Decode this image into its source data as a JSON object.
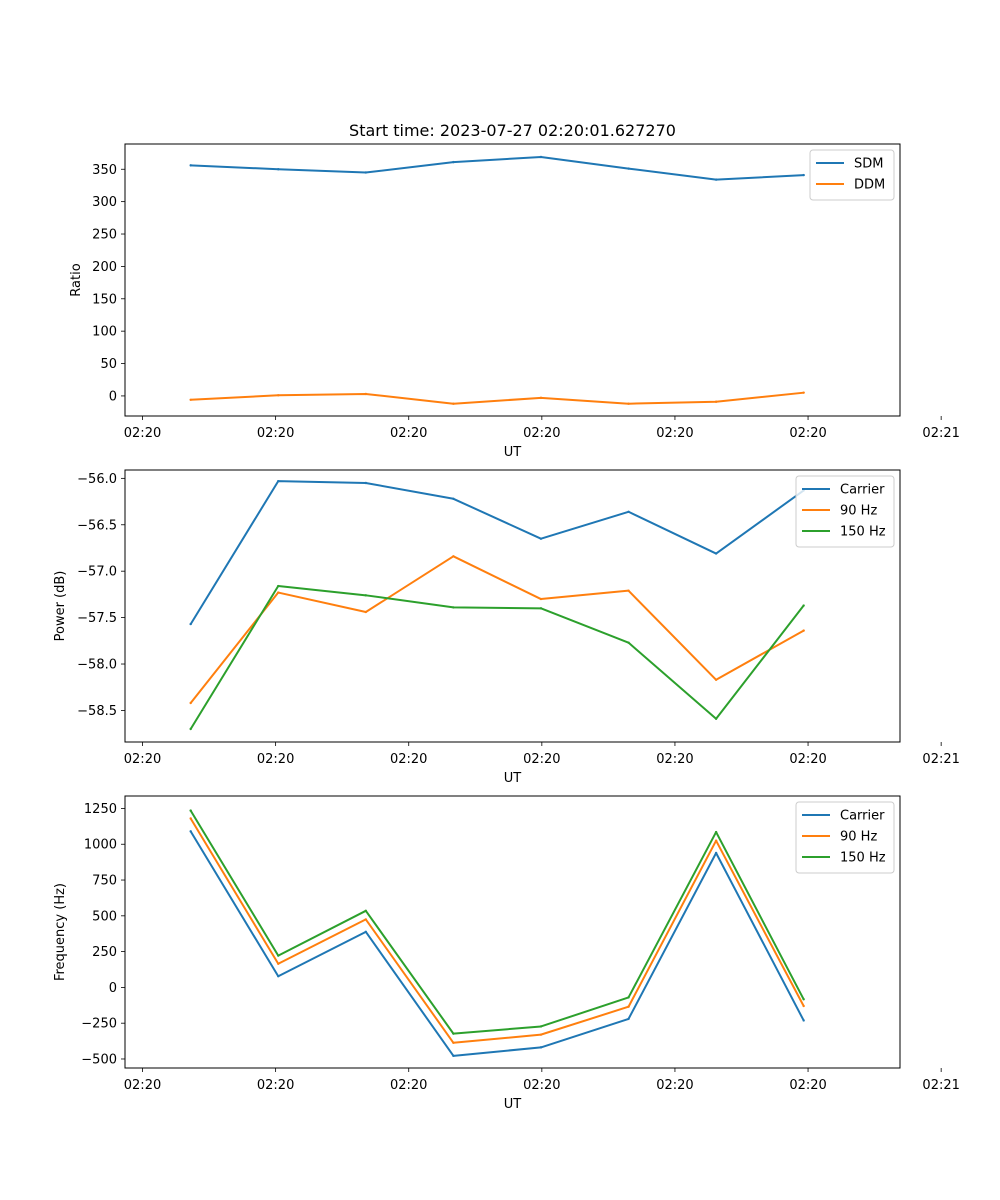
{
  "figure_title": "Start time: 2023-07-27 02:20:01.627270",
  "colors": {
    "blue": "#1f77b4",
    "orange": "#ff7f0e",
    "green": "#2ca02c"
  },
  "chart_data": [
    {
      "type": "line",
      "title": "Start time: 2023-07-27 02:20:01.627270",
      "xlabel": "UT",
      "ylabel": "Ratio",
      "x": [
        1,
        2,
        3,
        4,
        5,
        6,
        7,
        8
      ],
      "xlim": [
        0.25,
        9.1
      ],
      "xticks": [
        0.45,
        1.97,
        3.49,
        5.01,
        6.53,
        8.05,
        9.57
      ],
      "xtick_labels": [
        "02:20",
        "02:20",
        "02:20",
        "02:20",
        "02:20",
        "02:20",
        "02:21"
      ],
      "ylim": [
        -31,
        389
      ],
      "yticks": [
        0,
        50,
        100,
        150,
        200,
        250,
        300,
        350
      ],
      "ytick_labels": [
        "0",
        "50",
        "100",
        "150",
        "200",
        "250",
        "300",
        "350"
      ],
      "legend": "top-right",
      "series": [
        {
          "name": "SDM",
          "color": "#1f77b4",
          "values": [
            356,
            350,
            345,
            361,
            369,
            351,
            334,
            341
          ]
        },
        {
          "name": "DDM",
          "color": "#ff7f0e",
          "values": [
            -6,
            1,
            3,
            -12,
            -3,
            -12,
            -9,
            5
          ]
        }
      ]
    },
    {
      "type": "line",
      "title": "",
      "xlabel": "UT",
      "ylabel": "Power (dB)",
      "x": [
        1,
        2,
        3,
        4,
        5,
        6,
        7,
        8
      ],
      "xlim": [
        0.25,
        9.1
      ],
      "xticks": [
        0.45,
        1.97,
        3.49,
        5.01,
        6.53,
        8.05,
        9.57
      ],
      "xtick_labels": [
        "02:20",
        "02:20",
        "02:20",
        "02:20",
        "02:20",
        "02:20",
        "02:21"
      ],
      "ylim": [
        -58.84,
        -55.91
      ],
      "yticks": [
        -58.5,
        -58.0,
        -57.5,
        -57.0,
        -56.5,
        -56.0
      ],
      "ytick_labels": [
        "−58.5",
        "−58.0",
        "−57.5",
        "−57.0",
        "−56.5",
        "−56.0"
      ],
      "legend": "top-right",
      "series": [
        {
          "name": "Carrier",
          "color": "#1f77b4",
          "values": [
            -57.57,
            -56.03,
            -56.05,
            -56.22,
            -56.65,
            -56.36,
            -56.81,
            -56.13
          ]
        },
        {
          "name": "90 Hz",
          "color": "#ff7f0e",
          "values": [
            -58.42,
            -57.23,
            -57.44,
            -56.84,
            -57.3,
            -57.21,
            -58.17,
            -57.64
          ]
        },
        {
          "name": "150 Hz",
          "color": "#2ca02c",
          "values": [
            -58.7,
            -57.16,
            -57.26,
            -57.39,
            -57.4,
            -57.77,
            -58.59,
            -57.37
          ]
        }
      ]
    },
    {
      "type": "line",
      "title": "",
      "xlabel": "UT",
      "ylabel": "Frequency (Hz)",
      "x": [
        1,
        2,
        3,
        4,
        5,
        6,
        7,
        8
      ],
      "xlim": [
        0.25,
        9.1
      ],
      "xticks": [
        0.45,
        1.97,
        3.49,
        5.01,
        6.53,
        8.05,
        9.57
      ],
      "xtick_labels": [
        "02:20",
        "02:20",
        "02:20",
        "02:20",
        "02:20",
        "02:20",
        "02:21"
      ],
      "ylim": [
        -563,
        1337
      ],
      "yticks": [
        -500,
        -250,
        0,
        250,
        500,
        750,
        1000,
        1250
      ],
      "ytick_labels": [
        "−500",
        "−250",
        "0",
        "250",
        "500",
        "750",
        "1000",
        "1250"
      ],
      "legend": "top-right",
      "series": [
        {
          "name": "Carrier",
          "color": "#1f77b4",
          "values": [
            1090,
            78,
            388,
            -478,
            -419,
            -220,
            939,
            -231
          ]
        },
        {
          "name": "90 Hz",
          "color": "#ff7f0e",
          "values": [
            1180,
            165,
            475,
            -387,
            -330,
            -135,
            1025,
            -130
          ]
        },
        {
          "name": "150 Hz",
          "color": "#2ca02c",
          "values": [
            1235,
            222,
            535,
            -323,
            -273,
            -70,
            1085,
            -83
          ]
        }
      ]
    }
  ]
}
